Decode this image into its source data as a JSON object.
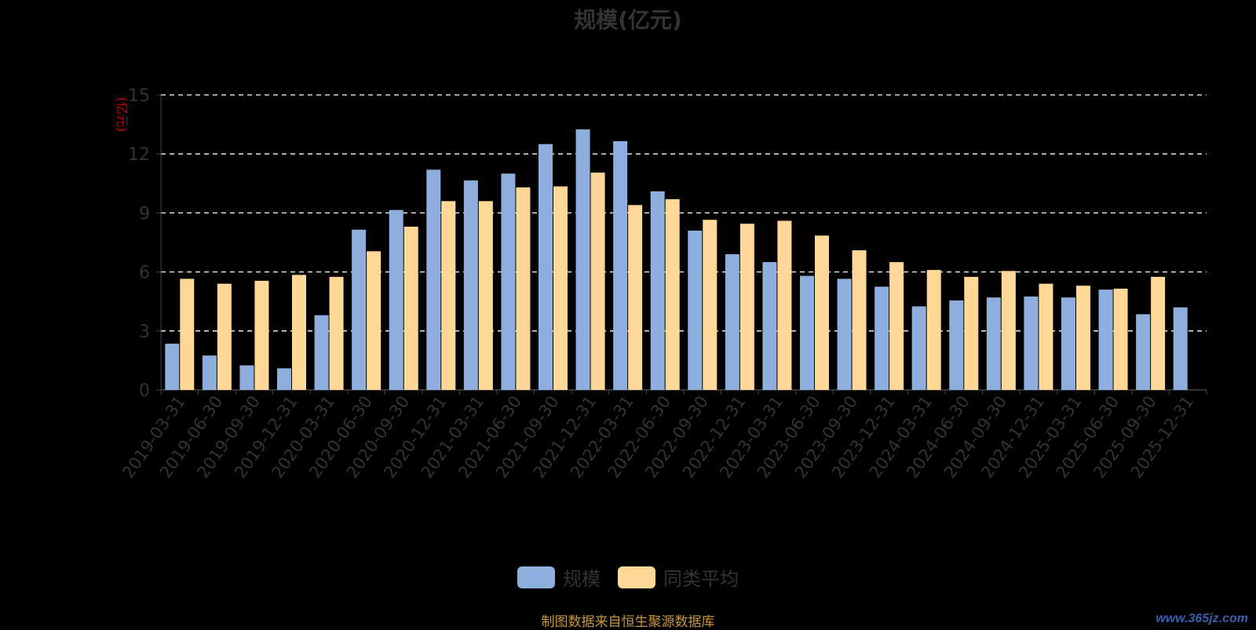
{
  "chart_data": {
    "type": "bar",
    "title": "规模(亿元)",
    "ylabel": "(亿元)",
    "ylim": [
      0,
      15
    ],
    "yticks": [
      0,
      3,
      6,
      9,
      12,
      15
    ],
    "grid": true,
    "legend_position": "bottom-center",
    "categories": [
      "2019-03-31",
      "2019-06-30",
      "2019-09-30",
      "2019-12-31",
      "2020-03-31",
      "2020-06-30",
      "2020-09-30",
      "2020-12-31",
      "2021-03-31",
      "2021-06-30",
      "2021-09-30",
      "2021-12-31",
      "2022-03-31",
      "2022-06-30",
      "2022-09-30",
      "2022-12-31",
      "2023-03-31",
      "2023-06-30",
      "2023-09-30",
      "2023-12-31",
      "2024-03-31",
      "2024-06-30",
      "2024-09-30",
      "2024-12-31",
      "2025-03-31",
      "2025-06-30",
      "2025-09-30",
      "2025-12-31"
    ],
    "series": [
      {
        "name": "规模",
        "color": "#8eaede",
        "values": [
          2.35,
          1.75,
          1.25,
          1.1,
          3.8,
          8.15,
          9.15,
          11.2,
          10.65,
          11.0,
          12.5,
          13.25,
          12.65,
          10.1,
          8.1,
          6.9,
          6.5,
          5.8,
          5.65,
          5.25,
          4.25,
          4.55,
          4.7,
          4.75,
          4.7,
          5.1,
          3.85,
          4.2
        ]
      },
      {
        "name": "同类平均",
        "color": "#ffd796",
        "values": [
          5.65,
          5.4,
          5.55,
          5.85,
          5.75,
          7.05,
          8.3,
          9.6,
          9.6,
          10.3,
          10.35,
          11.05,
          9.4,
          9.7,
          8.65,
          8.45,
          8.6,
          7.85,
          7.1,
          6.5,
          6.1,
          5.75,
          6.05,
          5.4,
          5.3,
          5.15,
          5.75,
          null
        ]
      }
    ]
  },
  "source_note": "制图数据来自恒生聚源数据库",
  "watermark": "www.365jz.com"
}
